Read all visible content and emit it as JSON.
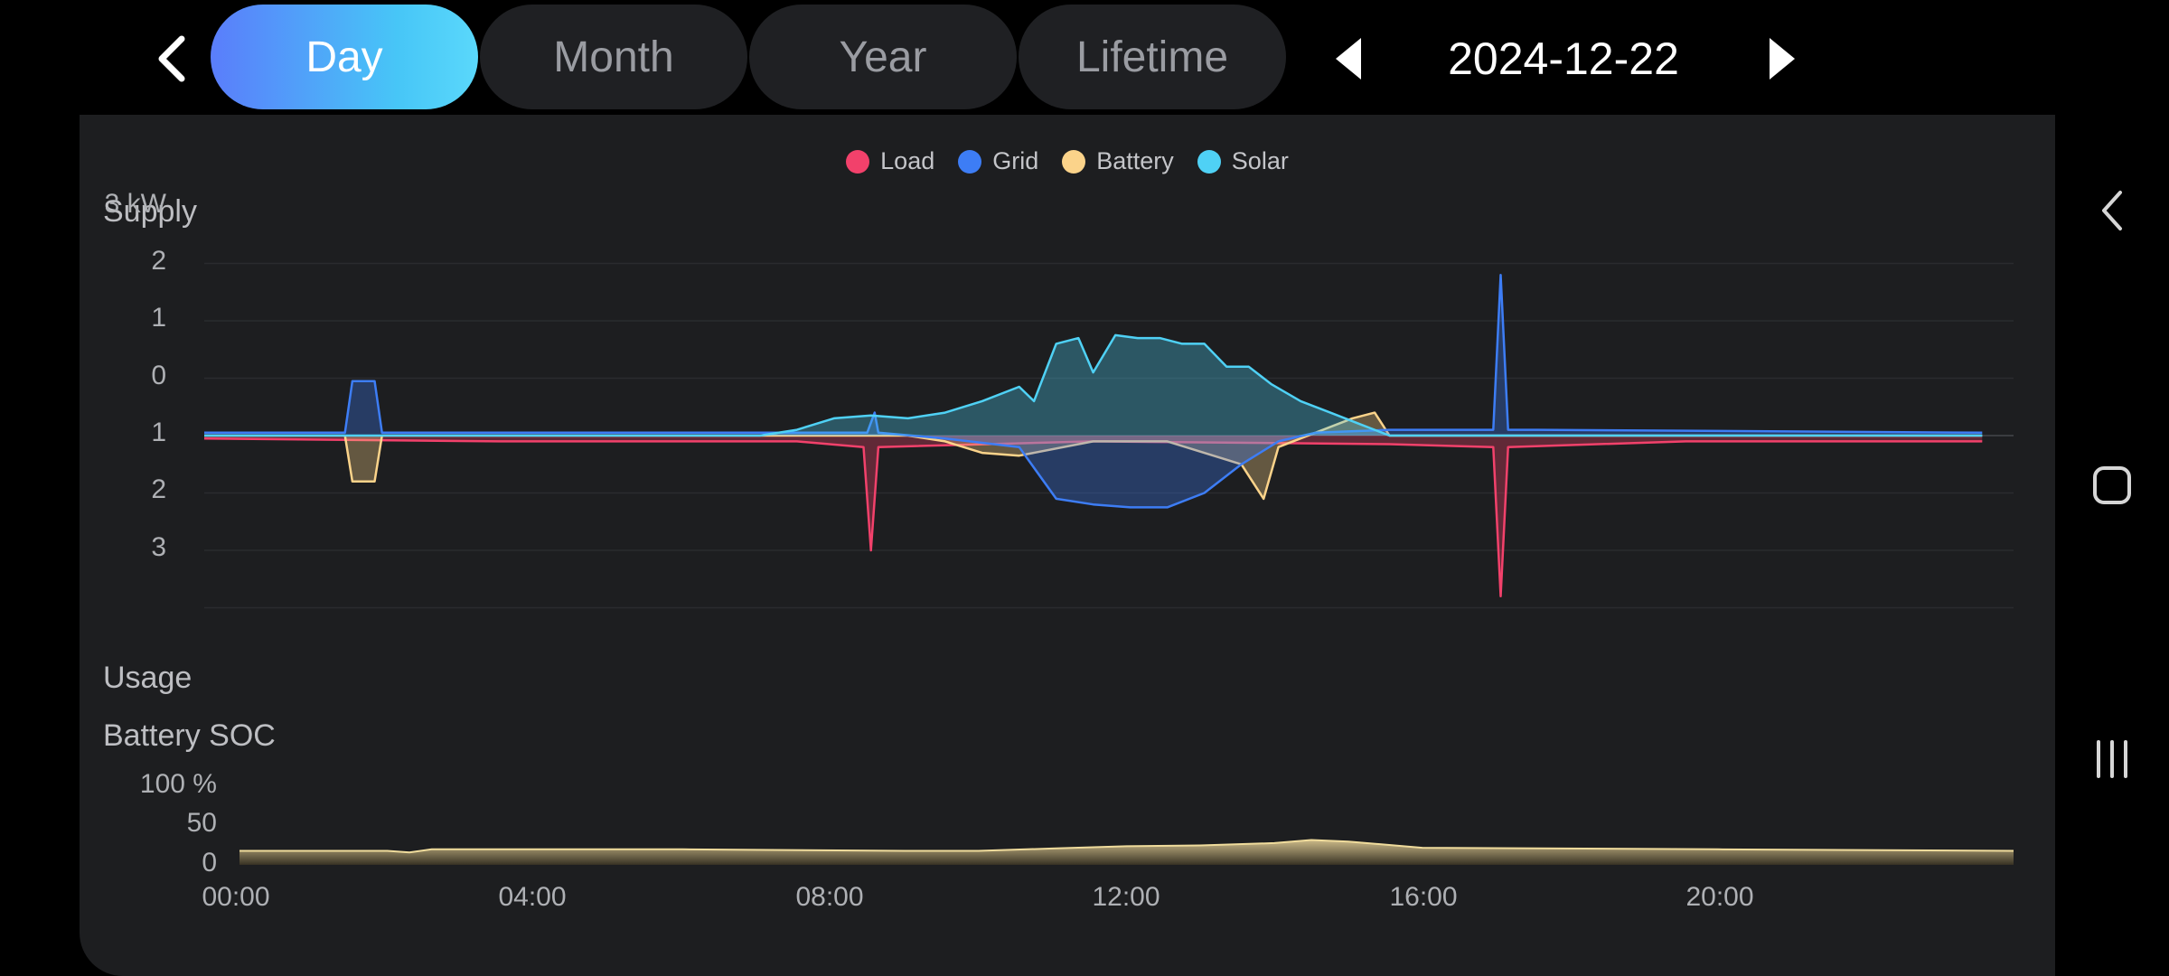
{
  "header": {
    "tabs": [
      {
        "label": "Day",
        "active": true
      },
      {
        "label": "Month",
        "active": false
      },
      {
        "label": "Year",
        "active": false
      },
      {
        "label": "Lifetime",
        "active": false
      }
    ],
    "date": "2024-12-22",
    "icons": [
      "back-chevron-icon",
      "previous-date-arrow-icon",
      "next-date-arrow-icon"
    ]
  },
  "chart": {
    "legend": [
      {
        "name": "Load",
        "color": "#f2416b"
      },
      {
        "name": "Grid",
        "color": "#3d7df5"
      },
      {
        "name": "Battery",
        "color": "#fbd38a"
      },
      {
        "name": "Solar",
        "color": "#4fd1f5"
      }
    ],
    "supply_label": "Supply",
    "usage_label": "Usage",
    "soc_label": "Battery SOC",
    "power_yticks": [
      "3 kW",
      "2",
      "1",
      "0",
      "1",
      "2",
      "3"
    ],
    "soc_yticks": [
      "100 %",
      "50",
      "0"
    ],
    "xticks": [
      "00:00",
      "04:00",
      "08:00",
      "12:00",
      "16:00",
      "20:00"
    ]
  },
  "chart_data": [
    {
      "type": "area",
      "unit": "kW",
      "ylim": [
        -3,
        3
      ],
      "x_unit": "hour of day",
      "series": [
        {
          "name": "Solar",
          "x": [
            0,
            7.5,
            8,
            8.5,
            9,
            9.5,
            10,
            10.5,
            11,
            11.2,
            11.5,
            11.8,
            12,
            12.3,
            12.6,
            12.9,
            13.2,
            13.5,
            13.8,
            14.1,
            14.4,
            14.8,
            15.2,
            15.6,
            16,
            24
          ],
          "values": [
            0,
            0,
            0.1,
            0.3,
            0.35,
            0.3,
            0.4,
            0.6,
            0.85,
            0.6,
            1.6,
            1.7,
            1.1,
            1.75,
            1.7,
            1.7,
            1.6,
            1.6,
            1.2,
            1.2,
            0.9,
            0.6,
            0.4,
            0.2,
            0,
            0
          ]
        },
        {
          "name": "Grid",
          "x": [
            0,
            1.9,
            2,
            2.3,
            2.4,
            8.95,
            9.05,
            9.1,
            10,
            11,
            11.5,
            12,
            12.5,
            13,
            13.5,
            14,
            14.5,
            15,
            16,
            17.4,
            17.5,
            17.6,
            18,
            24
          ],
          "values": [
            0.05,
            0.05,
            0.95,
            0.95,
            0.05,
            0.05,
            0.4,
            0.05,
            -0.05,
            -0.2,
            -1.1,
            -1.2,
            -1.25,
            -1.25,
            -1.0,
            -0.5,
            -0.1,
            0.05,
            0.1,
            0.1,
            2.8,
            0.1,
            0.1,
            0.05
          ]
        },
        {
          "name": "Battery",
          "x": [
            0,
            1.9,
            2,
            2.3,
            2.4,
            9.5,
            10,
            10.5,
            11,
            12,
            13,
            14,
            14.3,
            14.5,
            15.5,
            15.8,
            16,
            24
          ],
          "values": [
            0,
            0,
            -0.8,
            -0.8,
            0,
            0,
            -0.1,
            -0.3,
            -0.35,
            -0.1,
            -0.1,
            -0.5,
            -1.1,
            -0.2,
            0.3,
            0.4,
            0,
            0
          ]
        },
        {
          "name": "Load",
          "x": [
            0,
            4,
            8,
            8.9,
            9.0,
            9.1,
            12,
            16,
            17.4,
            17.5,
            17.6,
            20,
            24
          ],
          "values": [
            -0.05,
            -0.1,
            -0.1,
            -0.2,
            -2.0,
            -0.2,
            -0.1,
            -0.15,
            -0.2,
            -2.8,
            -0.2,
            -0.1,
            -0.1
          ]
        }
      ]
    },
    {
      "type": "area",
      "title": "Battery SOC",
      "unit": "%",
      "ylim": [
        0,
        100
      ],
      "series": [
        {
          "name": "Battery SOC",
          "x": [
            0,
            2,
            2.3,
            2.6,
            3,
            6,
            9,
            10,
            11,
            12,
            13,
            14,
            14.5,
            15,
            16,
            20,
            24
          ],
          "values": [
            18,
            18,
            16,
            20,
            20,
            20,
            18,
            18,
            21,
            24,
            25,
            28,
            32,
            30,
            22,
            20,
            18
          ]
        }
      ]
    }
  ],
  "nav": {
    "icons": [
      "system-back-icon",
      "home-icon",
      "recents-icon"
    ]
  }
}
